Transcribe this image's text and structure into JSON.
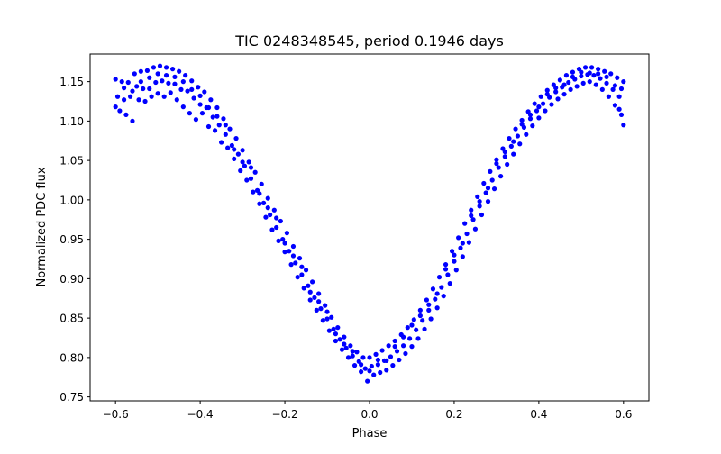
{
  "chart_data": {
    "type": "scatter",
    "title": "TIC 0248348545, period 0.1946 days",
    "xlabel": "Phase",
    "ylabel": "Normalized PDC flux",
    "xlim": [
      -0.66,
      0.66
    ],
    "ylim": [
      0.745,
      1.185
    ],
    "xticks": [
      -0.6,
      -0.4,
      -0.2,
      0.0,
      0.2,
      0.4,
      0.6
    ],
    "xtick_labels": [
      "−0.6",
      "−0.4",
      "−0.2",
      "0.0",
      "0.2",
      "0.4",
      "0.6"
    ],
    "yticks": [
      0.75,
      0.8,
      0.85,
      0.9,
      0.95,
      1.0,
      1.05,
      1.1,
      1.15
    ],
    "ytick_labels": [
      "0.75",
      "0.80",
      "0.85",
      "0.90",
      "0.95",
      "1.00",
      "1.05",
      "1.10",
      "1.15"
    ],
    "grid": false,
    "marker_color": "#0000ff",
    "series": [
      {
        "name": "",
        "points": [
          [
            -0.6,
            1.153
          ],
          [
            -0.595,
            1.131
          ],
          [
            -0.59,
            1.113
          ],
          [
            -0.585,
            1.15
          ],
          [
            -0.58,
            1.127
          ],
          [
            -0.575,
            1.108
          ],
          [
            -0.57,
            1.149
          ],
          [
            -0.565,
            1.131
          ],
          [
            -0.56,
            1.1
          ],
          [
            -0.555,
            1.16
          ],
          [
            -0.55,
            1.144
          ],
          [
            -0.545,
            1.127
          ],
          [
            -0.54,
            1.163
          ],
          [
            -0.535,
            1.141
          ],
          [
            -0.53,
            1.125
          ],
          [
            -0.525,
            1.164
          ],
          [
            -0.52,
            1.141
          ],
          [
            -0.515,
            1.131
          ],
          [
            -0.51,
            1.168
          ],
          [
            -0.505,
            1.149
          ],
          [
            -0.5,
            1.135
          ],
          [
            -0.495,
            1.17
          ],
          [
            -0.49,
            1.151
          ],
          [
            -0.485,
            1.131
          ],
          [
            -0.48,
            1.168
          ],
          [
            -0.475,
            1.148
          ],
          [
            -0.47,
            1.136
          ],
          [
            -0.465,
            1.166
          ],
          [
            -0.46,
            1.147
          ],
          [
            -0.455,
            1.127
          ],
          [
            -0.45,
            1.163
          ],
          [
            -0.445,
            1.14
          ],
          [
            -0.44,
            1.118
          ],
          [
            -0.435,
            1.158
          ],
          [
            -0.43,
            1.138
          ],
          [
            -0.425,
            1.11
          ],
          [
            -0.42,
            1.151
          ],
          [
            -0.415,
            1.129
          ],
          [
            -0.41,
            1.102
          ],
          [
            -0.405,
            1.143
          ],
          [
            -0.4,
            1.121
          ],
          [
            -0.395,
            1.11
          ],
          [
            -0.39,
            1.137
          ],
          [
            -0.385,
            1.117
          ],
          [
            -0.38,
            1.093
          ],
          [
            -0.375,
            1.127
          ],
          [
            -0.37,
            1.105
          ],
          [
            -0.365,
            1.088
          ],
          [
            -0.36,
            1.117
          ],
          [
            -0.355,
            1.095
          ],
          [
            -0.35,
            1.073
          ],
          [
            -0.345,
            1.103
          ],
          [
            -0.34,
            1.083
          ],
          [
            -0.335,
            1.066
          ],
          [
            -0.33,
            1.09
          ],
          [
            -0.325,
            1.069
          ],
          [
            -0.32,
            1.052
          ],
          [
            -0.315,
            1.078
          ],
          [
            -0.31,
            1.058
          ],
          [
            -0.305,
            1.037
          ],
          [
            -0.3,
            1.063
          ],
          [
            -0.295,
            1.043
          ],
          [
            -0.29,
            1.025
          ],
          [
            -0.285,
            1.048
          ],
          [
            -0.28,
            1.027
          ],
          [
            -0.275,
            1.01
          ],
          [
            -0.27,
            1.035
          ],
          [
            -0.265,
            1.012
          ],
          [
            -0.26,
            0.995
          ],
          [
            -0.255,
            1.02
          ],
          [
            -0.25,
            0.996
          ],
          [
            -0.245,
            0.978
          ],
          [
            -0.24,
            1.002
          ],
          [
            -0.235,
            0.981
          ],
          [
            -0.23,
            0.962
          ],
          [
            -0.225,
            0.987
          ],
          [
            -0.22,
            0.965
          ],
          [
            -0.215,
            0.948
          ],
          [
            -0.21,
            0.973
          ],
          [
            -0.205,
            0.95
          ],
          [
            -0.2,
            0.934
          ],
          [
            -0.195,
            0.958
          ],
          [
            -0.19,
            0.935
          ],
          [
            -0.185,
            0.918
          ],
          [
            -0.18,
            0.941
          ],
          [
            -0.175,
            0.92
          ],
          [
            -0.17,
            0.902
          ],
          [
            -0.165,
            0.926
          ],
          [
            -0.16,
            0.905
          ],
          [
            -0.155,
            0.888
          ],
          [
            -0.15,
            0.911
          ],
          [
            -0.145,
            0.891
          ],
          [
            -0.14,
            0.873
          ],
          [
            -0.135,
            0.896
          ],
          [
            -0.13,
            0.876
          ],
          [
            -0.125,
            0.86
          ],
          [
            -0.12,
            0.881
          ],
          [
            -0.115,
            0.862
          ],
          [
            -0.11,
            0.847
          ],
          [
            -0.105,
            0.866
          ],
          [
            -0.1,
            0.849
          ],
          [
            -0.095,
            0.834
          ],
          [
            -0.09,
            0.851
          ],
          [
            -0.085,
            0.836
          ],
          [
            -0.08,
            0.821
          ],
          [
            -0.075,
            0.838
          ],
          [
            -0.07,
            0.823
          ],
          [
            -0.065,
            0.81
          ],
          [
            -0.06,
            0.826
          ],
          [
            -0.055,
            0.812
          ],
          [
            -0.05,
            0.8
          ],
          [
            -0.045,
            0.815
          ],
          [
            -0.04,
            0.802
          ],
          [
            -0.035,
            0.79
          ],
          [
            -0.03,
            0.807
          ],
          [
            -0.025,
            0.795
          ],
          [
            -0.02,
            0.782
          ],
          [
            -0.015,
            0.8
          ],
          [
            -0.01,
            0.786
          ],
          [
            -0.005,
            0.77
          ],
          [
            0.0,
            0.8
          ],
          [
            0.005,
            0.789
          ],
          [
            0.01,
            0.778
          ],
          [
            0.015,
            0.804
          ],
          [
            0.02,
            0.791
          ],
          [
            0.025,
            0.781
          ],
          [
            0.03,
            0.809
          ],
          [
            0.035,
            0.796
          ],
          [
            0.04,
            0.784
          ],
          [
            0.045,
            0.815
          ],
          [
            0.05,
            0.801
          ],
          [
            0.055,
            0.79
          ],
          [
            0.06,
            0.821
          ],
          [
            0.065,
            0.808
          ],
          [
            0.07,
            0.797
          ],
          [
            0.075,
            0.829
          ],
          [
            0.08,
            0.815
          ],
          [
            0.085,
            0.805
          ],
          [
            0.09,
            0.838
          ],
          [
            0.095,
            0.824
          ],
          [
            0.1,
            0.814
          ],
          [
            0.105,
            0.848
          ],
          [
            0.11,
            0.835
          ],
          [
            0.115,
            0.824
          ],
          [
            0.12,
            0.86
          ],
          [
            0.125,
            0.847
          ],
          [
            0.13,
            0.836
          ],
          [
            0.135,
            0.873
          ],
          [
            0.14,
            0.86
          ],
          [
            0.145,
            0.849
          ],
          [
            0.15,
            0.887
          ],
          [
            0.155,
            0.874
          ],
          [
            0.16,
            0.863
          ],
          [
            0.165,
            0.902
          ],
          [
            0.17,
            0.889
          ],
          [
            0.175,
            0.878
          ],
          [
            0.18,
            0.918
          ],
          [
            0.185,
            0.905
          ],
          [
            0.19,
            0.894
          ],
          [
            0.195,
            0.935
          ],
          [
            0.2,
            0.922
          ],
          [
            0.205,
            0.911
          ],
          [
            0.21,
            0.952
          ],
          [
            0.215,
            0.939
          ],
          [
            0.22,
            0.928
          ],
          [
            0.225,
            0.97
          ],
          [
            0.23,
            0.957
          ],
          [
            0.235,
            0.946
          ],
          [
            0.24,
            0.987
          ],
          [
            0.245,
            0.975
          ],
          [
            0.25,
            0.963
          ],
          [
            0.255,
            1.004
          ],
          [
            0.26,
            0.992
          ],
          [
            0.265,
            0.981
          ],
          [
            0.27,
            1.021
          ],
          [
            0.275,
            1.009
          ],
          [
            0.28,
            0.998
          ],
          [
            0.285,
            1.036
          ],
          [
            0.29,
            1.025
          ],
          [
            0.295,
            1.014
          ],
          [
            0.3,
            1.051
          ],
          [
            0.305,
            1.041
          ],
          [
            0.31,
            1.03
          ],
          [
            0.315,
            1.065
          ],
          [
            0.32,
            1.055
          ],
          [
            0.325,
            1.045
          ],
          [
            0.33,
            1.078
          ],
          [
            0.335,
            1.068
          ],
          [
            0.34,
            1.058
          ],
          [
            0.345,
            1.09
          ],
          [
            0.35,
            1.081
          ],
          [
            0.355,
            1.071
          ],
          [
            0.36,
            1.101
          ],
          [
            0.365,
            1.092
          ],
          [
            0.37,
            1.083
          ],
          [
            0.375,
            1.112
          ],
          [
            0.38,
            1.103
          ],
          [
            0.385,
            1.094
          ],
          [
            0.39,
            1.122
          ],
          [
            0.395,
            1.113
          ],
          [
            0.4,
            1.104
          ],
          [
            0.405,
            1.131
          ],
          [
            0.41,
            1.122
          ],
          [
            0.415,
            1.113
          ],
          [
            0.42,
            1.139
          ],
          [
            0.425,
            1.13
          ],
          [
            0.43,
            1.121
          ],
          [
            0.435,
            1.146
          ],
          [
            0.44,
            1.137
          ],
          [
            0.445,
            1.128
          ],
          [
            0.45,
            1.152
          ],
          [
            0.455,
            1.143
          ],
          [
            0.46,
            1.134
          ],
          [
            0.465,
            1.158
          ],
          [
            0.47,
            1.149
          ],
          [
            0.475,
            1.14
          ],
          [
            0.48,
            1.162
          ],
          [
            0.485,
            1.153
          ],
          [
            0.49,
            1.144
          ],
          [
            0.495,
            1.166
          ],
          [
            0.5,
            1.157
          ],
          [
            0.505,
            1.148
          ],
          [
            0.51,
            1.168
          ],
          [
            0.515,
            1.159
          ],
          [
            0.52,
            1.15
          ],
          [
            0.525,
            1.168
          ],
          [
            0.53,
            1.158
          ],
          [
            0.535,
            1.146
          ],
          [
            0.54,
            1.166
          ],
          [
            0.545,
            1.154
          ],
          [
            0.55,
            1.14
          ],
          [
            0.555,
            1.163
          ],
          [
            0.56,
            1.148
          ],
          [
            0.565,
            1.131
          ],
          [
            0.57,
            1.16
          ],
          [
            0.575,
            1.14
          ],
          [
            0.58,
            1.12
          ],
          [
            0.585,
            1.155
          ],
          [
            0.59,
            1.131
          ],
          [
            0.595,
            1.108
          ],
          [
            0.6,
            1.15
          ],
          [
            0.6,
            1.095
          ],
          [
            0.595,
            1.141
          ],
          [
            0.59,
            1.115
          ],
          [
            -0.6,
            1.118
          ],
          [
            -0.58,
            1.142
          ],
          [
            -0.56,
            1.138
          ],
          [
            -0.54,
            1.15
          ],
          [
            -0.52,
            1.155
          ],
          [
            -0.5,
            1.16
          ],
          [
            -0.48,
            1.158
          ],
          [
            -0.46,
            1.156
          ],
          [
            -0.44,
            1.15
          ],
          [
            -0.42,
            1.14
          ],
          [
            -0.4,
            1.132
          ],
          [
            -0.38,
            1.117
          ],
          [
            -0.36,
            1.106
          ],
          [
            -0.34,
            1.095
          ],
          [
            -0.32,
            1.064
          ],
          [
            -0.3,
            1.048
          ],
          [
            -0.28,
            1.041
          ],
          [
            -0.26,
            1.008
          ],
          [
            -0.24,
            0.99
          ],
          [
            -0.22,
            0.977
          ],
          [
            -0.2,
            0.945
          ],
          [
            -0.18,
            0.929
          ],
          [
            -0.16,
            0.915
          ],
          [
            -0.14,
            0.883
          ],
          [
            -0.12,
            0.871
          ],
          [
            -0.1,
            0.858
          ],
          [
            -0.08,
            0.83
          ],
          [
            -0.06,
            0.817
          ],
          [
            -0.04,
            0.808
          ],
          [
            -0.02,
            0.791
          ],
          [
            0.0,
            0.783
          ],
          [
            0.02,
            0.797
          ],
          [
            0.04,
            0.796
          ],
          [
            0.06,
            0.814
          ],
          [
            0.08,
            0.826
          ],
          [
            0.1,
            0.841
          ],
          [
            0.12,
            0.853
          ],
          [
            0.14,
            0.867
          ],
          [
            0.16,
            0.881
          ],
          [
            0.18,
            0.912
          ],
          [
            0.2,
            0.93
          ],
          [
            0.22,
            0.945
          ],
          [
            0.24,
            0.98
          ],
          [
            0.26,
            0.998
          ],
          [
            0.28,
            1.015
          ],
          [
            0.3,
            1.046
          ],
          [
            0.32,
            1.061
          ],
          [
            0.34,
            1.074
          ],
          [
            0.36,
            1.096
          ],
          [
            0.38,
            1.108
          ],
          [
            0.4,
            1.118
          ],
          [
            0.42,
            1.134
          ],
          [
            0.44,
            1.142
          ],
          [
            0.46,
            1.146
          ],
          [
            0.48,
            1.156
          ],
          [
            0.5,
            1.162
          ],
          [
            0.52,
            1.161
          ],
          [
            0.54,
            1.16
          ],
          [
            0.56,
            1.156
          ],
          [
            0.58,
            1.145
          ]
        ]
      }
    ]
  }
}
